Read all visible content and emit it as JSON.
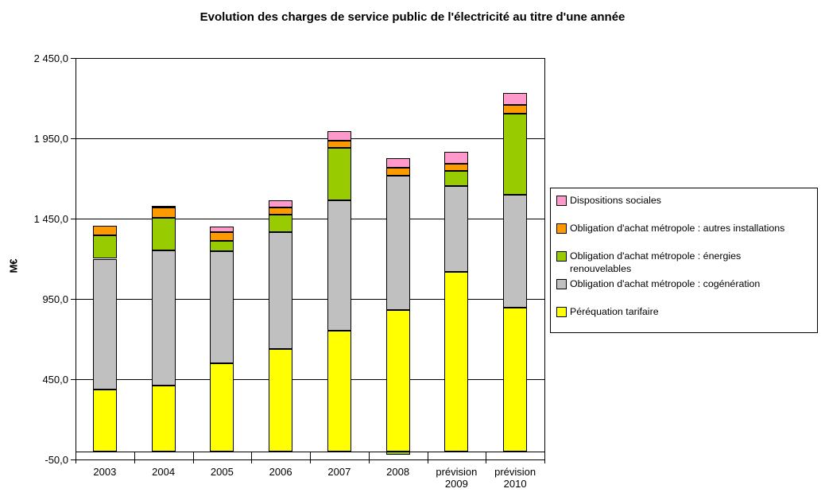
{
  "title": "Evolution des charges de service public de l'électricité au titre d'une année",
  "y_axis": {
    "label": "M€",
    "tick_labels": [
      "2 450,0",
      "1 950,0",
      "1 450,0",
      "950,0",
      "450,0",
      "-50,0"
    ],
    "tick_values": [
      2450,
      1950,
      1450,
      950,
      450,
      -50
    ]
  },
  "x_axis": {
    "labels": [
      [
        "2003"
      ],
      [
        "2004"
      ],
      [
        "2005"
      ],
      [
        "2006"
      ],
      [
        "2007"
      ],
      [
        "2008"
      ],
      [
        "prévision",
        "2009"
      ],
      [
        "prévision",
        "2010"
      ]
    ]
  },
  "legend": {
    "items": [
      {
        "lines": [
          "Dispositions sociales"
        ],
        "color": "#FF99CC"
      },
      {
        "lines": [
          "Obligation d'achat métropole : autres installations"
        ],
        "color": "#FF9900"
      },
      {
        "lines": [
          "Obligation d'achat métropole : énergies",
          "renouvelables"
        ],
        "color": "#99CC00"
      },
      {
        "lines": [
          "Obligation d'achat métropole : cogénération"
        ],
        "color": "#C0C0C0"
      },
      {
        "lines": [
          "Péréquation tarifaire"
        ],
        "color": "#FFFF00"
      }
    ]
  },
  "chart_data": {
    "type": "bar",
    "stacked": true,
    "title": "Evolution des charges de service public de l'électricité au titre d'une année",
    "xlabel": "",
    "ylabel": "M€",
    "unit": "M€",
    "ylim": [
      -50,
      2450
    ],
    "ytick_step": 500,
    "grid": true,
    "legend_position": "right",
    "categories": [
      "2003",
      "2004",
      "2005",
      "2006",
      "2007",
      "2008",
      "prévision 2009",
      "prévision 2010"
    ],
    "series": [
      {
        "name": "Péréquation tarifaire",
        "color": "#FFFF00",
        "values": [
          385,
          410,
          550,
          640,
          750,
          880,
          1120,
          895
        ]
      },
      {
        "name": "Obligation d'achat métropole : cogénération",
        "color": "#C0C0C0",
        "values": [
          815,
          840,
          695,
          725,
          815,
          835,
          535,
          705
        ]
      },
      {
        "name": "Obligation d'achat métropole : énergies renouvelables",
        "color": "#99CC00",
        "values": [
          145,
          205,
          65,
          110,
          325,
          -20,
          90,
          505
        ]
      },
      {
        "name": "Obligation d'achat métropole : autres installations",
        "color": "#FF9900",
        "values": [
          60,
          65,
          57,
          46,
          46,
          50,
          46,
          55
        ]
      },
      {
        "name": "Dispositions sociales",
        "color": "#FF99CC",
        "values": [
          0,
          8,
          33,
          45,
          60,
          60,
          75,
          70
        ]
      }
    ],
    "approx_totals": [
      1405,
      1528,
      1400,
      1566,
      1996,
      1825,
      1866,
      2230
    ]
  }
}
